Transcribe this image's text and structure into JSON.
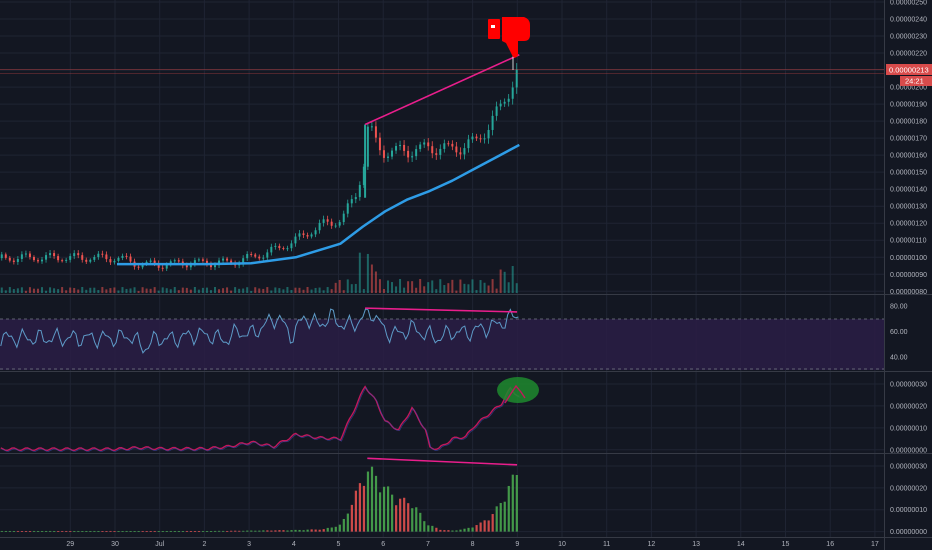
{
  "colors": {
    "background": "#131722",
    "grid": "#1f2433",
    "up": "#26a69a",
    "down": "#ef5350",
    "ma": "#2e9ce6",
    "trendline": "#e91e8c",
    "rsi_line": "#5e9bc8",
    "rsi_band": "#2a1d45",
    "annotation_red": "#ff0000",
    "annotation_green": "#1e8a2e",
    "price_tag": "#d84b4b",
    "volume_osc_up": "#4caf50",
    "volume_osc_down": "#ef5350"
  },
  "icons": [
    "thumbs-down-icon"
  ],
  "price_tag": {
    "price": "0.00000213",
    "countdown": "24:21"
  },
  "chart_data": [
    {
      "type": "line",
      "panel": "price",
      "series": [
        {
          "x": [
            0,
            0.5,
            1,
            1.5,
            2,
            2.5,
            3,
            3.5,
            4,
            4.5,
            5,
            5.3,
            5.5,
            5.6,
            5.8,
            6,
            6.5,
            7,
            7.5,
            8,
            8.3,
            8.5,
            8.7,
            8.85,
            9
          ],
          "values": [
            9.95e-08,
            9.6e-08,
            9.6e-08,
            9.7e-08,
            9.7e-08,
            9.7e-08,
            1e-07,
            1.04e-07,
            1.1e-07,
            1.18e-07,
            1.22e-07,
            1.35e-07,
            1.55e-07,
            1.78e-07,
            1.65e-07,
            1.62e-07,
            1.63e-07,
            1.65e-07,
            1.64e-07,
            1.68e-07,
            1.78e-07,
            1.85e-07,
            1.95e-07,
            2.05e-07,
            2.13e-07
          ]
        },
        {
          "x": [
            0,
            1,
            2,
            3,
            4,
            5,
            5.5,
            6,
            6.5,
            7,
            7.5,
            8,
            8.5,
            9
          ],
          "values": [
            9.6e-08,
            9.6e-08,
            9.6e-08,
            9.65e-08,
            1e-07,
            1.08e-07,
            1.18e-07,
            1.27e-07,
            1.34e-07,
            1.39e-07,
            1.45e-07,
            1.52e-07,
            1.59e-07,
            1.66e-07
          ]
        }
      ],
      "trendline": {
        "x": [
          5.55,
          9.0
        ],
        "values": [
          1.78e-07,
          2.19e-07
        ]
      },
      "ylim": [
        7.9e-08,
        2.5e-07
      ],
      "yticks": [
        "0.00000250",
        "0.00000240",
        "0.00000230",
        "0.00000220",
        "0.00000210",
        "0.00000200",
        "0.00000190",
        "0.00000180",
        "0.00000170",
        "0.00000160",
        "0.00000150",
        "0.00000140",
        "0.00000130",
        "0.00000120",
        "0.00000110",
        "0.00000100",
        "0.00000090",
        "0.00000080"
      ]
    },
    {
      "type": "line",
      "panel": "rsi",
      "series": [
        {
          "x": [
            0,
            0.3,
            0.6,
            0.9,
            1.2,
            1.5,
            1.8,
            2.1,
            2.4,
            2.7,
            3,
            3.3,
            3.6,
            3.9,
            4.2,
            4.5,
            4.8,
            5.1,
            5.4,
            5.7,
            6,
            6.3,
            6.6,
            6.9,
            7.2,
            7.5,
            7.8,
            8.1,
            8.4,
            8.7,
            9
          ],
          "values": [
            55,
            57,
            47,
            55,
            54,
            56,
            58,
            57,
            53,
            60,
            58,
            65,
            72,
            56,
            72,
            65,
            72,
            64,
            68,
            76,
            60,
            58,
            63,
            58,
            55,
            60,
            59,
            62,
            64,
            69,
            74
          ]
        }
      ],
      "divergence_line": {
        "x": [
          5.55,
          8.95
        ],
        "values": [
          78.5,
          75.5
        ]
      },
      "bands": [
        70,
        30
      ],
      "ylim": [
        30,
        88
      ],
      "yticks": [
        "80.00",
        "60.00",
        "40.00"
      ]
    },
    {
      "type": "line",
      "panel": "oscillator",
      "series": [
        {
          "x": [
            0,
            0.5,
            1,
            1.5,
            2,
            2.5,
            3,
            3.5,
            4,
            4.5,
            5,
            5.3,
            5.55,
            5.8,
            6,
            6.3,
            6.6,
            6.9,
            7,
            7.2,
            7.5,
            7.8,
            8,
            8.3,
            8.6,
            8.8,
            9
          ],
          "values": [
            3e-10,
            1e-09,
            5e-10,
            5e-10,
            5e-10,
            1.5e-09,
            3.5e-09,
            1.5e-09,
            7e-09,
            5.5e-09,
            5e-09,
            1.8e-08,
            2.9e-08,
            2.2e-08,
            1.3e-08,
            9e-09,
            1.9e-08,
            9e-09,
            1e-09,
            5e-10,
            5e-09,
            6e-09,
            1.1e-08,
            1.6e-08,
            2.1e-08,
            2.8e-08,
            2.4e-08
          ]
        }
      ],
      "ylim": [
        -1e-09,
        3.5e-08
      ],
      "yticks": [
        "0.00000030",
        "0.00000020",
        "0.00000010",
        "0.00000000"
      ]
    },
    {
      "type": "bar",
      "panel": "volume_oscillator",
      "peaks": [
        {
          "x": [
            0,
            2,
            3,
            4,
            4.6,
            5.0,
            5.3,
            5.6,
            5.85,
            6.2,
            6.6,
            6.9,
            7.2,
            7.5,
            7.8,
            8.1,
            8.4,
            8.7,
            8.95
          ],
          "values": [
            3e-10,
            3e-10,
            5e-10,
            8e-10,
            1.2e-09,
            3.5e-09,
            1.8e-08,
            3.2e-08,
            2.5e-08,
            1.7e-08,
            1.4e-08,
            4e-09,
            1e-09,
            5e-10,
            1.5e-09,
            4e-09,
            9e-09,
            2e-08,
            3.2e-08
          ]
        }
      ],
      "divergence_line": {
        "x": [
          5.6,
          8.95
        ],
        "values": [
          3.35e-08,
          3.05e-08
        ]
      },
      "ylim": [
        -2e-09,
        3.5e-08
      ],
      "yticks": [
        "0.00000030",
        "0.00000020",
        "0.00000010",
        "0.00000000"
      ]
    }
  ],
  "x_axis": {
    "ticks": [
      {
        "label": "29",
        "x": -1
      },
      {
        "label": "30",
        "x": 0
      },
      {
        "label": "Jul",
        "x": 1
      },
      {
        "label": "2",
        "x": 2
      },
      {
        "label": "3",
        "x": 3
      },
      {
        "label": "4",
        "x": 4
      },
      {
        "label": "5",
        "x": 5
      },
      {
        "label": "6",
        "x": 6
      },
      {
        "label": "7",
        "x": 7
      },
      {
        "label": "8",
        "x": 8
      },
      {
        "label": "9",
        "x": 9
      },
      {
        "label": "10",
        "x": 10
      },
      {
        "label": "11",
        "x": 11
      },
      {
        "label": "12",
        "x": 12
      },
      {
        "label": "13",
        "x": 13
      },
      {
        "label": "14",
        "x": 14
      },
      {
        "label": "15",
        "x": 15
      },
      {
        "label": "16",
        "x": 16
      },
      {
        "label": "17",
        "x": 17
      }
    ]
  }
}
